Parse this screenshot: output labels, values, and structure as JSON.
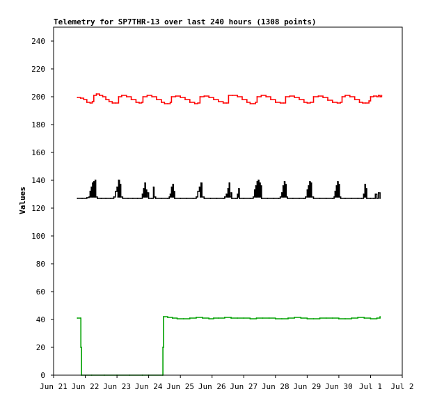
{
  "chart_data": {
    "type": "line",
    "title": "Telemetry for SP7THR-13 over last 240 hours (1308 points)",
    "xlabel": "",
    "ylabel": "Values",
    "xlim": [
      0,
      11
    ],
    "ylim": [
      0,
      250
    ],
    "x_ticks": [
      {
        "x": 0,
        "label": "Jun 21"
      },
      {
        "x": 1,
        "label": "Jun 22"
      },
      {
        "x": 2,
        "label": "Jun 23"
      },
      {
        "x": 3,
        "label": "Jun 24"
      },
      {
        "x": 4,
        "label": "Jun 25"
      },
      {
        "x": 5,
        "label": "Jun 26"
      },
      {
        "x": 6,
        "label": "Jun 27"
      },
      {
        "x": 7,
        "label": "Jun 28"
      },
      {
        "x": 8,
        "label": "Jun 29"
      },
      {
        "x": 9,
        "label": "Jun 30"
      },
      {
        "x": 10,
        "label": "Jul 1"
      },
      {
        "x": 11,
        "label": "Jul 2"
      }
    ],
    "y_ticks": [
      0,
      20,
      40,
      60,
      80,
      100,
      120,
      140,
      160,
      180,
      200,
      220,
      240
    ],
    "grid": false,
    "legend": "none",
    "series": [
      {
        "color": "#ff0000",
        "points": [
          [
            0.75,
            199.5
          ],
          [
            0.85,
            199
          ],
          [
            0.95,
            198
          ],
          [
            1.05,
            196
          ],
          [
            1.15,
            195.5
          ],
          [
            1.22,
            196.5
          ],
          [
            1.27,
            201
          ],
          [
            1.35,
            202
          ],
          [
            1.45,
            201
          ],
          [
            1.55,
            200
          ],
          [
            1.65,
            198
          ],
          [
            1.75,
            196.5
          ],
          [
            1.85,
            195.5
          ],
          [
            1.95,
            195.5
          ],
          [
            2.05,
            200
          ],
          [
            2.15,
            201
          ],
          [
            2.3,
            200
          ],
          [
            2.45,
            198
          ],
          [
            2.6,
            196
          ],
          [
            2.7,
            195.5
          ],
          [
            2.78,
            196
          ],
          [
            2.82,
            200
          ],
          [
            2.95,
            201
          ],
          [
            3.1,
            200
          ],
          [
            3.25,
            198
          ],
          [
            3.4,
            196
          ],
          [
            3.5,
            195
          ],
          [
            3.6,
            195
          ],
          [
            3.68,
            196
          ],
          [
            3.72,
            200
          ],
          [
            3.85,
            200.5
          ],
          [
            4.0,
            199.5
          ],
          [
            4.15,
            198
          ],
          [
            4.3,
            196
          ],
          [
            4.45,
            195
          ],
          [
            4.55,
            195.5
          ],
          [
            4.62,
            200
          ],
          [
            4.75,
            200.5
          ],
          [
            4.9,
            199.5
          ],
          [
            5.05,
            198
          ],
          [
            5.2,
            196.5
          ],
          [
            5.35,
            195.5
          ],
          [
            5.45,
            195.5
          ],
          [
            5.52,
            201
          ],
          [
            5.65,
            201
          ],
          [
            5.8,
            200
          ],
          [
            5.95,
            198
          ],
          [
            6.1,
            196
          ],
          [
            6.2,
            195
          ],
          [
            6.3,
            195
          ],
          [
            6.37,
            196
          ],
          [
            6.42,
            200
          ],
          [
            6.55,
            201
          ],
          [
            6.7,
            200
          ],
          [
            6.85,
            198
          ],
          [
            7.0,
            196
          ],
          [
            7.15,
            195.5
          ],
          [
            7.25,
            195.5
          ],
          [
            7.32,
            200
          ],
          [
            7.45,
            200.5
          ],
          [
            7.6,
            199.5
          ],
          [
            7.75,
            198
          ],
          [
            7.9,
            196
          ],
          [
            8.0,
            195.5
          ],
          [
            8.1,
            196
          ],
          [
            8.2,
            200
          ],
          [
            8.35,
            200.5
          ],
          [
            8.5,
            199.5
          ],
          [
            8.65,
            197.5
          ],
          [
            8.8,
            196
          ],
          [
            8.95,
            195.5
          ],
          [
            9.05,
            196
          ],
          [
            9.1,
            200
          ],
          [
            9.2,
            201
          ],
          [
            9.35,
            200
          ],
          [
            9.5,
            198
          ],
          [
            9.65,
            196
          ],
          [
            9.75,
            195.5
          ],
          [
            9.85,
            195.5
          ],
          [
            9.95,
            197
          ],
          [
            10.0,
            200
          ],
          [
            10.1,
            200.5
          ],
          [
            10.2,
            200
          ],
          [
            10.25,
            201
          ],
          [
            10.3,
            200
          ],
          [
            10.35,
            201
          ]
        ]
      },
      {
        "color": "#000000",
        "points": [
          [
            0.75,
            127
          ],
          [
            0.9,
            127
          ],
          [
            1.05,
            127.5
          ],
          [
            1.12,
            128
          ],
          [
            1.15,
            132
          ],
          [
            1.17,
            128
          ],
          [
            1.19,
            135
          ],
          [
            1.21,
            128
          ],
          [
            1.23,
            138
          ],
          [
            1.25,
            128
          ],
          [
            1.27,
            139
          ],
          [
            1.29,
            128
          ],
          [
            1.31,
            140
          ],
          [
            1.33,
            128
          ],
          [
            1.38,
            127
          ],
          [
            1.5,
            127
          ],
          [
            1.65,
            127
          ],
          [
            1.8,
            127
          ],
          [
            1.9,
            128
          ],
          [
            1.95,
            132
          ],
          [
            2.0,
            135
          ],
          [
            2.03,
            128
          ],
          [
            2.05,
            140
          ],
          [
            2.08,
            128
          ],
          [
            2.1,
            137
          ],
          [
            2.12,
            128
          ],
          [
            2.18,
            127
          ],
          [
            2.35,
            127
          ],
          [
            2.5,
            127
          ],
          [
            2.65,
            127
          ],
          [
            2.75,
            127
          ],
          [
            2.8,
            130
          ],
          [
            2.82,
            128
          ],
          [
            2.84,
            134
          ],
          [
            2.86,
            128
          ],
          [
            2.88,
            138
          ],
          [
            2.9,
            128
          ],
          [
            2.92,
            133
          ],
          [
            2.94,
            128
          ],
          [
            2.96,
            131
          ],
          [
            3.0,
            127
          ],
          [
            3.1,
            127
          ],
          [
            3.15,
            135
          ],
          [
            3.17,
            128
          ],
          [
            3.22,
            127
          ],
          [
            3.4,
            127
          ],
          [
            3.6,
            127
          ],
          [
            3.65,
            128
          ],
          [
            3.68,
            130
          ],
          [
            3.7,
            128
          ],
          [
            3.72,
            135
          ],
          [
            3.74,
            128
          ],
          [
            3.76,
            137
          ],
          [
            3.78,
            128
          ],
          [
            3.8,
            132
          ],
          [
            3.82,
            127
          ],
          [
            4.0,
            127
          ],
          [
            4.2,
            127
          ],
          [
            4.4,
            127
          ],
          [
            4.5,
            128
          ],
          [
            4.55,
            132
          ],
          [
            4.6,
            135
          ],
          [
            4.63,
            128
          ],
          [
            4.65,
            138
          ],
          [
            4.68,
            128
          ],
          [
            4.75,
            127
          ],
          [
            4.95,
            127
          ],
          [
            5.15,
            127
          ],
          [
            5.35,
            127
          ],
          [
            5.4,
            128
          ],
          [
            5.45,
            130
          ],
          [
            5.48,
            128
          ],
          [
            5.5,
            134
          ],
          [
            5.52,
            128
          ],
          [
            5.54,
            138
          ],
          [
            5.56,
            128
          ],
          [
            5.6,
            131
          ],
          [
            5.62,
            127
          ],
          [
            5.75,
            127
          ],
          [
            5.8,
            130
          ],
          [
            5.82,
            128
          ],
          [
            5.84,
            134
          ],
          [
            5.86,
            127
          ],
          [
            6.0,
            127
          ],
          [
            6.2,
            127
          ],
          [
            6.3,
            128
          ],
          [
            6.34,
            133
          ],
          [
            6.36,
            128
          ],
          [
            6.38,
            136
          ],
          [
            6.4,
            128
          ],
          [
            6.42,
            139
          ],
          [
            6.44,
            128
          ],
          [
            6.46,
            140
          ],
          [
            6.48,
            128
          ],
          [
            6.5,
            138
          ],
          [
            6.52,
            128
          ],
          [
            6.54,
            136
          ],
          [
            6.56,
            127
          ],
          [
            6.75,
            127
          ],
          [
            6.95,
            127
          ],
          [
            7.1,
            127
          ],
          [
            7.15,
            128
          ],
          [
            7.2,
            131
          ],
          [
            7.22,
            128
          ],
          [
            7.24,
            136
          ],
          [
            7.26,
            128
          ],
          [
            7.28,
            139
          ],
          [
            7.3,
            128
          ],
          [
            7.32,
            137
          ],
          [
            7.34,
            128
          ],
          [
            7.38,
            127
          ],
          [
            7.55,
            127
          ],
          [
            7.75,
            127
          ],
          [
            7.9,
            127
          ],
          [
            7.95,
            128
          ],
          [
            8.0,
            133
          ],
          [
            8.02,
            128
          ],
          [
            8.04,
            136
          ],
          [
            8.06,
            128
          ],
          [
            8.08,
            139
          ],
          [
            8.1,
            128
          ],
          [
            8.12,
            138
          ],
          [
            8.14,
            128
          ],
          [
            8.2,
            127
          ],
          [
            8.4,
            127
          ],
          [
            8.6,
            127
          ],
          [
            8.8,
            127
          ],
          [
            8.85,
            128
          ],
          [
            8.88,
            132
          ],
          [
            8.9,
            128
          ],
          [
            8.92,
            136
          ],
          [
            8.94,
            128
          ],
          [
            8.96,
            139
          ],
          [
            8.98,
            128
          ],
          [
            9.0,
            137
          ],
          [
            9.02,
            128
          ],
          [
            9.06,
            127
          ],
          [
            9.2,
            127
          ],
          [
            9.4,
            127
          ],
          [
            9.6,
            127
          ],
          [
            9.72,
            127
          ],
          [
            9.78,
            130
          ],
          [
            9.8,
            128
          ],
          [
            9.82,
            137
          ],
          [
            9.84,
            128
          ],
          [
            9.86,
            134
          ],
          [
            9.88,
            127
          ],
          [
            10.0,
            127
          ],
          [
            10.1,
            127
          ],
          [
            10.15,
            130
          ],
          [
            10.2,
            127
          ],
          [
            10.25,
            131
          ],
          [
            10.3,
            127
          ]
        ]
      },
      {
        "color": "#00a000",
        "points": [
          [
            0.75,
            41
          ],
          [
            0.85,
            41
          ],
          [
            0.86,
            20
          ],
          [
            0.87,
            20
          ],
          [
            0.88,
            0
          ],
          [
            1.2,
            0
          ],
          [
            1.6,
            0
          ],
          [
            2.0,
            0
          ],
          [
            2.4,
            0
          ],
          [
            2.8,
            0
          ],
          [
            3.0,
            0
          ],
          [
            3.44,
            0
          ],
          [
            3.45,
            20
          ],
          [
            3.46,
            20
          ],
          [
            3.47,
            42
          ],
          [
            3.6,
            41.5
          ],
          [
            3.75,
            41
          ],
          [
            3.9,
            40.5
          ],
          [
            4.1,
            40.5
          ],
          [
            4.3,
            41
          ],
          [
            4.5,
            41.5
          ],
          [
            4.7,
            41
          ],
          [
            4.9,
            40.5
          ],
          [
            5.05,
            41
          ],
          [
            5.2,
            41
          ],
          [
            5.4,
            41.5
          ],
          [
            5.6,
            41
          ],
          [
            5.8,
            41
          ],
          [
            6.0,
            41
          ],
          [
            6.2,
            40.5
          ],
          [
            6.4,
            41
          ],
          [
            6.6,
            41
          ],
          [
            6.8,
            41
          ],
          [
            7.0,
            40.5
          ],
          [
            7.2,
            40.5
          ],
          [
            7.4,
            41
          ],
          [
            7.6,
            41.5
          ],
          [
            7.8,
            41
          ],
          [
            8.0,
            40.5
          ],
          [
            8.2,
            40.5
          ],
          [
            8.4,
            41
          ],
          [
            8.6,
            41
          ],
          [
            8.8,
            41
          ],
          [
            9.0,
            40.5
          ],
          [
            9.2,
            40.5
          ],
          [
            9.4,
            41
          ],
          [
            9.6,
            41.5
          ],
          [
            9.8,
            41
          ],
          [
            10.0,
            40.5
          ],
          [
            10.2,
            41
          ],
          [
            10.3,
            42
          ]
        ]
      }
    ]
  }
}
